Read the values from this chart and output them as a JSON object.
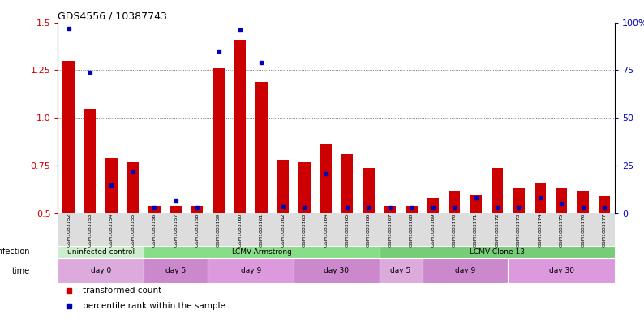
{
  "title": "GDS4556 / 10387743",
  "samples": [
    "GSM1083152",
    "GSM1083153",
    "GSM1083154",
    "GSM1083155",
    "GSM1083156",
    "GSM1083157",
    "GSM1083158",
    "GSM1083159",
    "GSM1083160",
    "GSM1083161",
    "GSM1083162",
    "GSM1083163",
    "GSM1083164",
    "GSM1083165",
    "GSM1083166",
    "GSM1083167",
    "GSM1083168",
    "GSM1083169",
    "GSM1083170",
    "GSM1083171",
    "GSM1083172",
    "GSM1083173",
    "GSM1083174",
    "GSM1083175",
    "GSM1083176",
    "GSM1083177"
  ],
  "red_values": [
    1.3,
    1.05,
    0.79,
    0.77,
    0.54,
    0.54,
    0.54,
    1.26,
    1.41,
    1.19,
    0.78,
    0.77,
    0.86,
    0.81,
    0.74,
    0.54,
    0.54,
    0.58,
    0.62,
    0.6,
    0.74,
    0.63,
    0.66,
    0.63,
    0.62,
    0.59
  ],
  "blue_values_pct": [
    97,
    74,
    15,
    22,
    3,
    7,
    3,
    85,
    96,
    79,
    4,
    3,
    21,
    3,
    3,
    3,
    3,
    3,
    3,
    8,
    3,
    3,
    8,
    5,
    3,
    3
  ],
  "ylim_left": [
    0.5,
    1.5
  ],
  "ylim_right": [
    0,
    100
  ],
  "yticks_left": [
    0.5,
    0.75,
    1.0,
    1.25,
    1.5
  ],
  "yticks_right": [
    0,
    25,
    50,
    75,
    100
  ],
  "bar_width": 0.55,
  "red_color": "#cc0000",
  "blue_color": "#0000bb",
  "infection_row": [
    {
      "label": "uninfected control",
      "start": 0,
      "end": 4,
      "color": "#cceecc"
    },
    {
      "label": "LCMV-Armstrong",
      "start": 4,
      "end": 15,
      "color": "#88dd88"
    },
    {
      "label": "LCMV-Clone 13",
      "start": 15,
      "end": 26,
      "color": "#77cc77"
    }
  ],
  "time_row": [
    {
      "label": "day 0",
      "start": 0,
      "end": 4,
      "color": "#ddaadd"
    },
    {
      "label": "day 5",
      "start": 4,
      "end": 7,
      "color": "#cc88cc"
    },
    {
      "label": "day 9",
      "start": 7,
      "end": 11,
      "color": "#dd99dd"
    },
    {
      "label": "day 30",
      "start": 11,
      "end": 15,
      "color": "#cc88cc"
    },
    {
      "label": "day 5",
      "start": 15,
      "end": 17,
      "color": "#ddaadd"
    },
    {
      "label": "day 9",
      "start": 17,
      "end": 21,
      "color": "#cc88cc"
    },
    {
      "label": "day 30",
      "start": 21,
      "end": 26,
      "color": "#dd99dd"
    }
  ],
  "plot_bg": "#ffffff",
  "tick_label_color_left": "#cc0000",
  "tick_label_color_right": "#0000bb",
  "grid_color": "#555555",
  "label_bg": "#dddddd"
}
